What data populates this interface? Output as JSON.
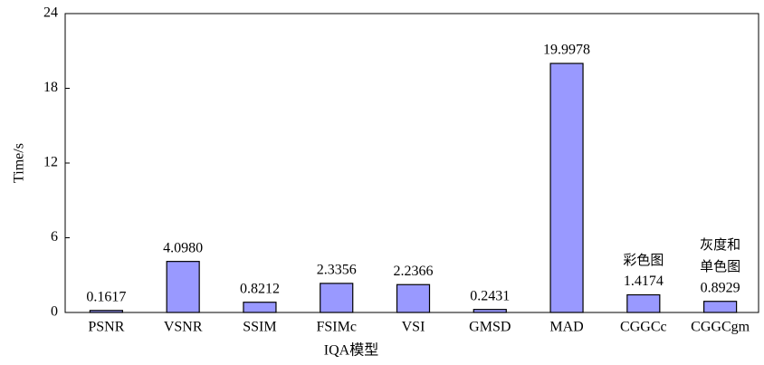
{
  "chart_data": {
    "type": "bar",
    "x_label": "IQA模型",
    "y_label": "Time/s",
    "categories": [
      "PSNR",
      "VSNR",
      "SSIM",
      "FSIMc",
      "VSI",
      "GMSD",
      "MAD",
      "CGGCc",
      "CGGCgm"
    ],
    "values": [
      0.1617,
      4.098,
      0.8212,
      2.3356,
      2.2366,
      0.2431,
      19.9978,
      1.4174,
      0.8929
    ],
    "value_labels": [
      "0.1617",
      "4.0980",
      "0.8212",
      "2.3356",
      "2.2366",
      "0.2431",
      "19.9978",
      "1.4174",
      "0.8929"
    ],
    "value_notes": [
      null,
      null,
      null,
      null,
      null,
      null,
      null,
      [
        "彩色图"
      ],
      [
        "灰度和",
        "单色图"
      ]
    ],
    "color": "#9999ff",
    "ylim": [
      0,
      24
    ],
    "yticks": [
      0,
      6,
      12,
      18,
      24
    ],
    "grid": false
  }
}
